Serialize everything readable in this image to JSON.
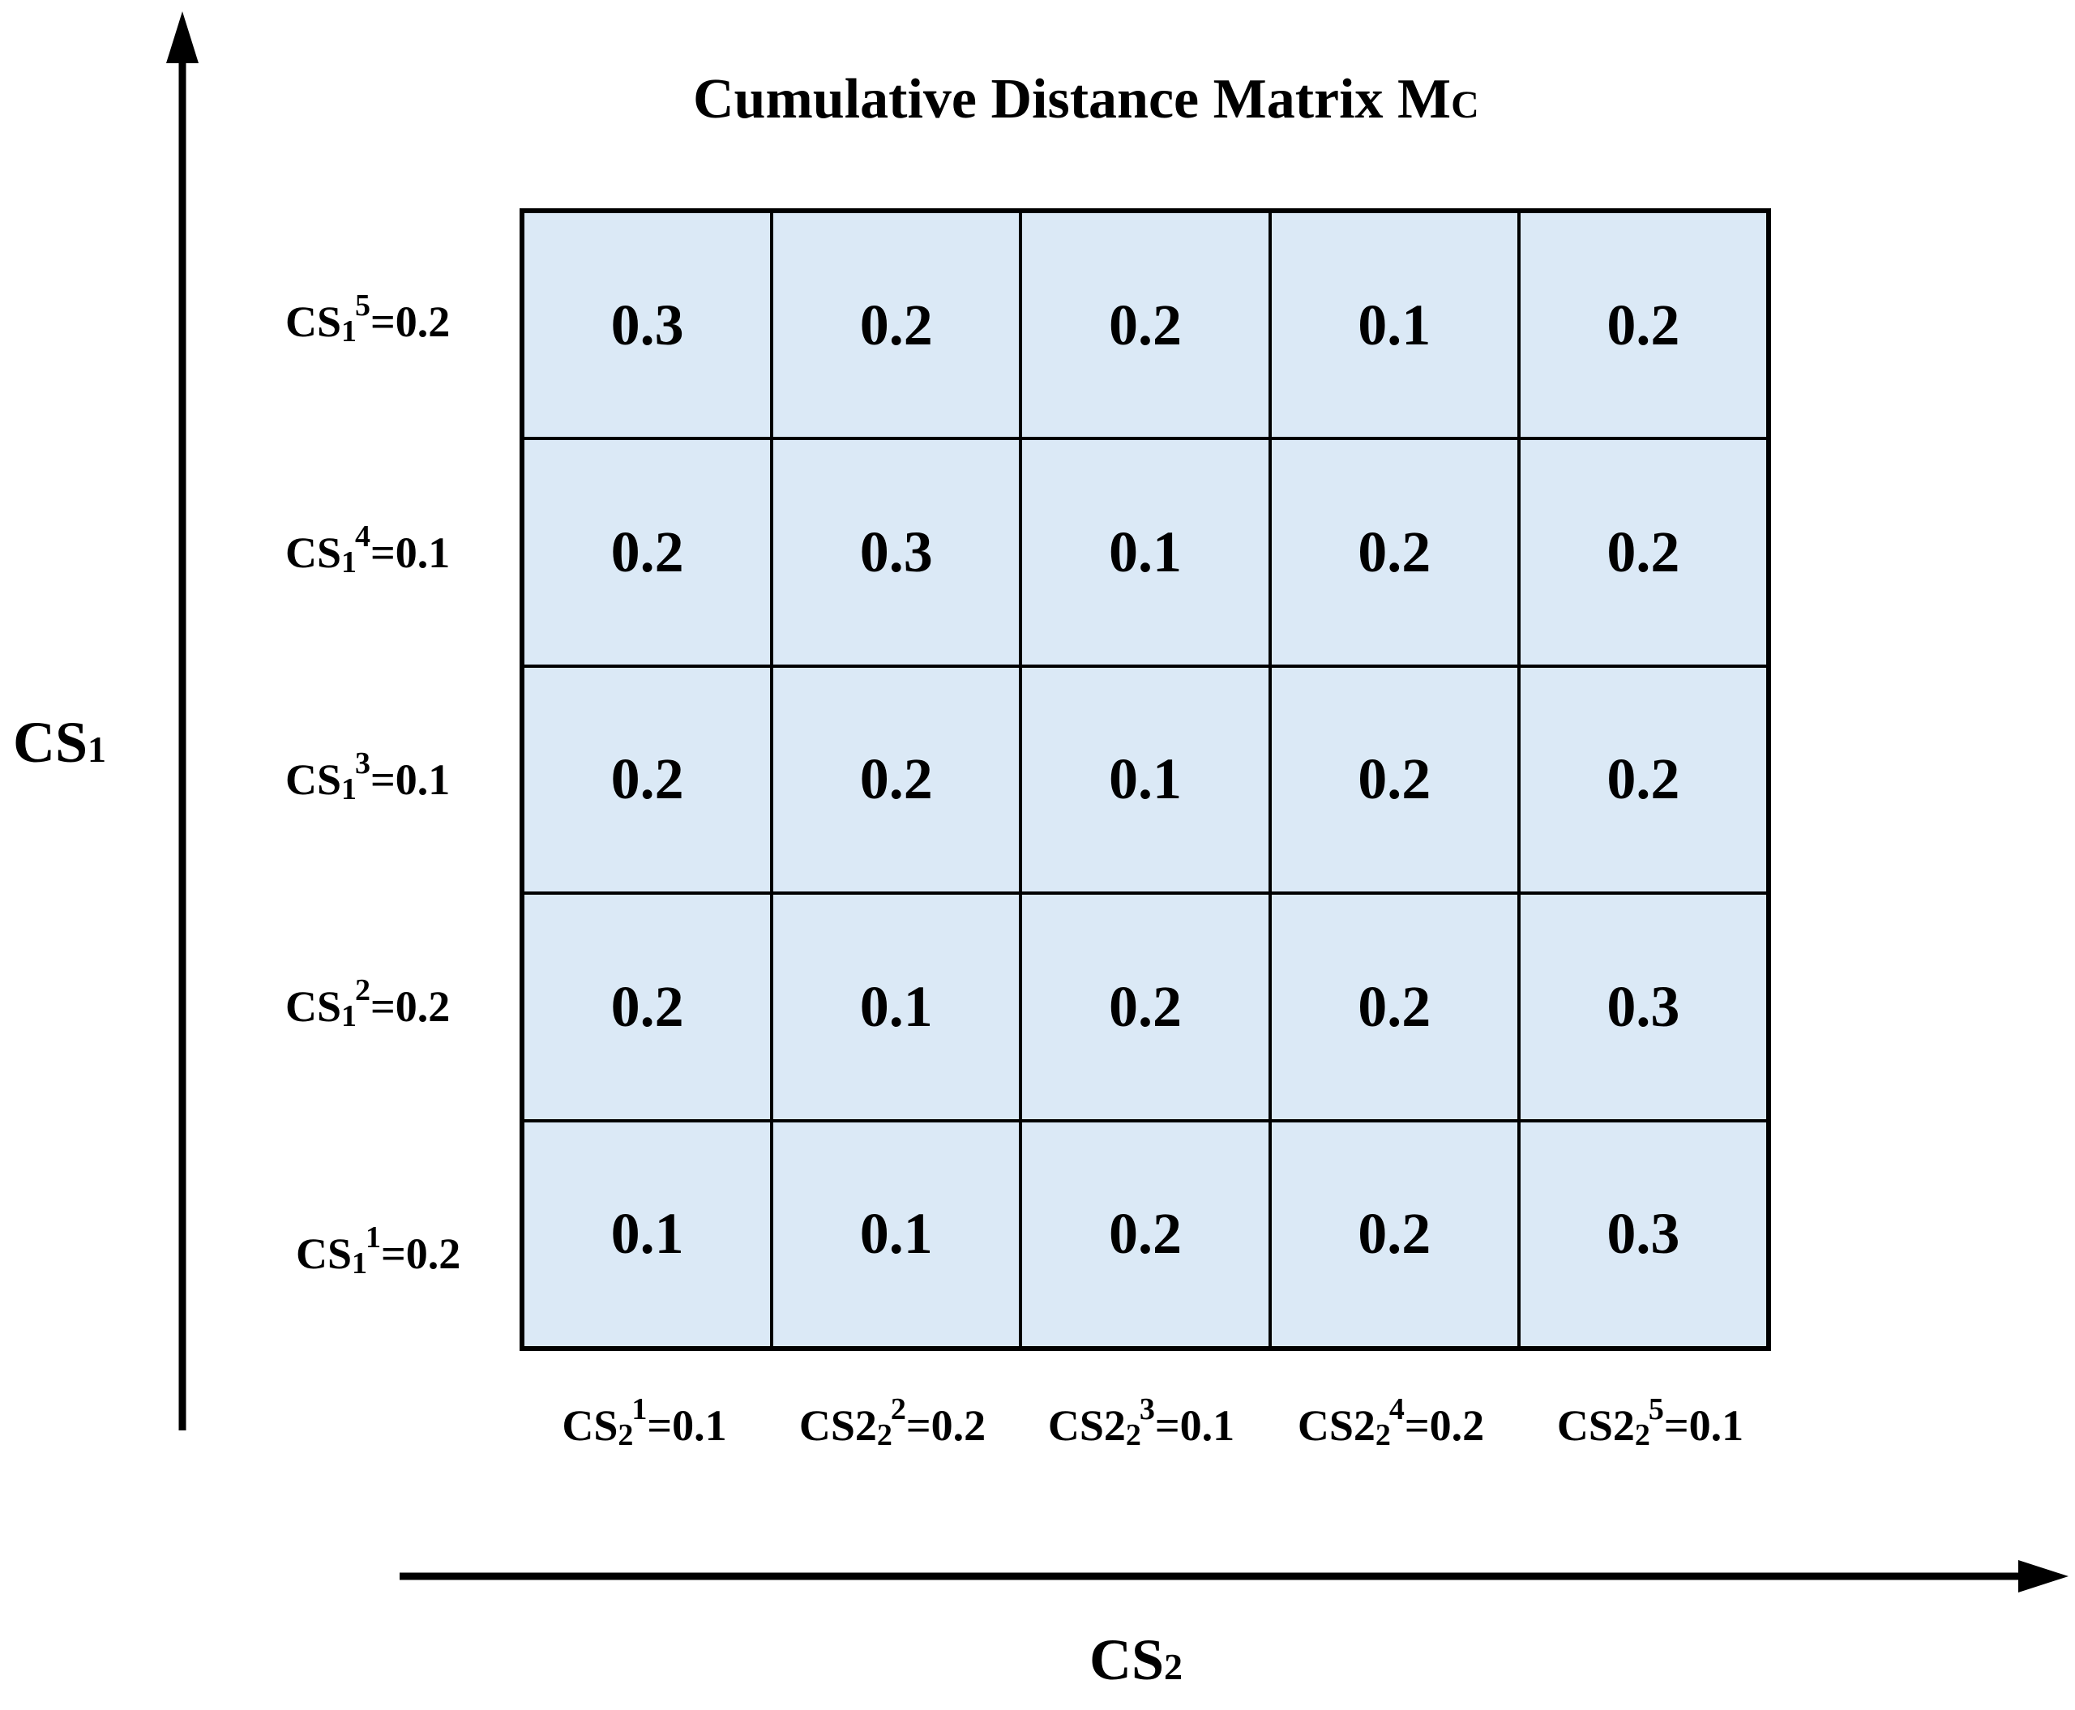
{
  "title": {
    "main": "Cumulative Distance Matrix M",
    "subscript": "C"
  },
  "axes": {
    "y": {
      "name": "CS",
      "subscript": "1"
    },
    "x": {
      "name": "CS",
      "subscript": "2"
    }
  },
  "row_labels": [
    {
      "base": "CS",
      "sub": "1",
      "sup": "5",
      "value": "=0.2"
    },
    {
      "base": "CS",
      "sub": "1",
      "sup": "4",
      "value": "=0.1"
    },
    {
      "base": "CS",
      "sub": "1",
      "sup": "3",
      "value": "=0.1"
    },
    {
      "base": "CS",
      "sub": "1",
      "sup": "2",
      "value": "=0.2"
    },
    {
      "base": "CS",
      "sub": "1",
      "sup": "1",
      "value": "=0.2"
    }
  ],
  "col_labels": [
    {
      "base": "CS",
      "sub": "2",
      "sup": "1",
      "value": "=0.1"
    },
    {
      "base": "CS2",
      "sub": "2",
      "sup": "2",
      "value": "=0.2"
    },
    {
      "base": "CS2",
      "sub": "2",
      "sup": "3",
      "value": "=0.1"
    },
    {
      "base": "CS2",
      "sub": "2",
      "sup": "4",
      "value": "=0.2"
    },
    {
      "base": "CS2",
      "sub": "2",
      "sup": "5",
      "value": "=0.1"
    }
  ],
  "matrix": [
    [
      "0.3",
      "0.2",
      "0.2",
      "0.1",
      "0.2"
    ],
    [
      "0.2",
      "0.3",
      "0.1",
      "0.2",
      "0.2"
    ],
    [
      "0.2",
      "0.2",
      "0.1",
      "0.2",
      "0.2"
    ],
    [
      "0.2",
      "0.1",
      "0.2",
      "0.2",
      "0.3"
    ],
    [
      "0.1",
      "0.1",
      "0.2",
      "0.2",
      "0.3"
    ]
  ],
  "colors": {
    "cell_fill": "#dbe9f6",
    "stroke": "#000000"
  }
}
